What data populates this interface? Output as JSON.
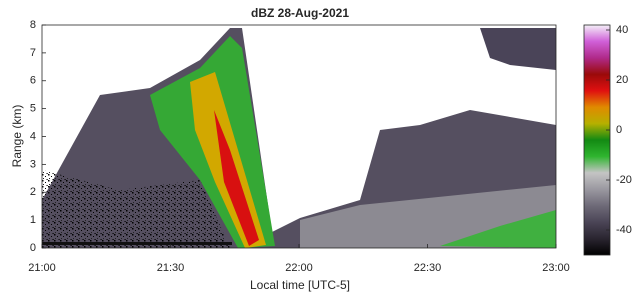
{
  "chart_data": {
    "type": "heatmap",
    "title": "dBZ 28-Aug-2021",
    "x_label": "Local time [UTC-5]",
    "y_label": "Range (km)",
    "xticks": [
      "21:00",
      "21:30",
      "22:00",
      "22:30",
      "23:00"
    ],
    "ylim": [
      0,
      8
    ],
    "yticks": [
      0,
      1,
      2,
      3,
      4,
      5,
      6,
      7,
      8
    ],
    "clim": [
      -50,
      42
    ],
    "cticks": [
      -40,
      -20,
      0,
      20,
      40
    ],
    "colormap": [
      "#000000",
      "#2a2530",
      "#4b4556",
      "#6e6a78",
      "#9a98a0",
      "#c4c4c4",
      "#2fb52f",
      "#138a13",
      "#b6b000",
      "#e08a00",
      "#e01010",
      "#9a0a0a",
      "#b02a8a",
      "#d060d8",
      "#f4f0f8"
    ]
  }
}
